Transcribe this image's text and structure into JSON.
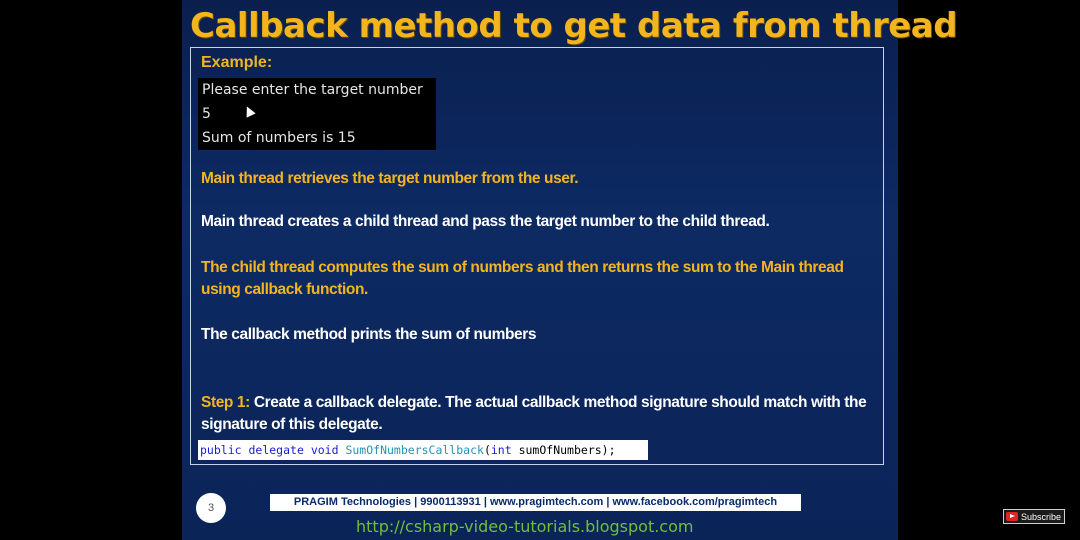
{
  "slide": {
    "title": "Callback method to get data from thread",
    "example_label": "Example:",
    "console_lines": [
      "Please enter the target number",
      "5",
      "Sum of numbers is 15"
    ],
    "paragraphs": [
      "Main thread retrieves the target number from the user.",
      "Main thread creates a child thread and pass the target number to the child thread.",
      "The child thread computes the sum of numbers and then returns the sum to the Main thread using callback function.",
      "The callback method prints the sum of numbers"
    ],
    "step": {
      "label": "Step 1:",
      "text": "Create a callback delegate. The actual callback method signature should match with the signature of this delegate."
    },
    "code": {
      "kw1": "public",
      "kw2": "delegate",
      "kw3": "void",
      "type_name": "SumOfNumbersCallback",
      "open_paren": "(",
      "kw4": "int",
      "param": " sumOfNumbers",
      "close": ");"
    },
    "page_number": "3",
    "footer_info": "PRAGIM Technologies | 9900113931 | www.pragimtech.com | www.facebook.com/pragimtech",
    "footer_url": "http://csharp-video-tutorials.blogspot.com"
  },
  "overlay": {
    "subscribe_label": "Subscribe"
  },
  "colors": {
    "title": "#f3b51d",
    "highlight": "#f3b51d",
    "body_text": "#ffffff",
    "slide_bg": "#0d2a63",
    "url": "#6fbf3a"
  }
}
